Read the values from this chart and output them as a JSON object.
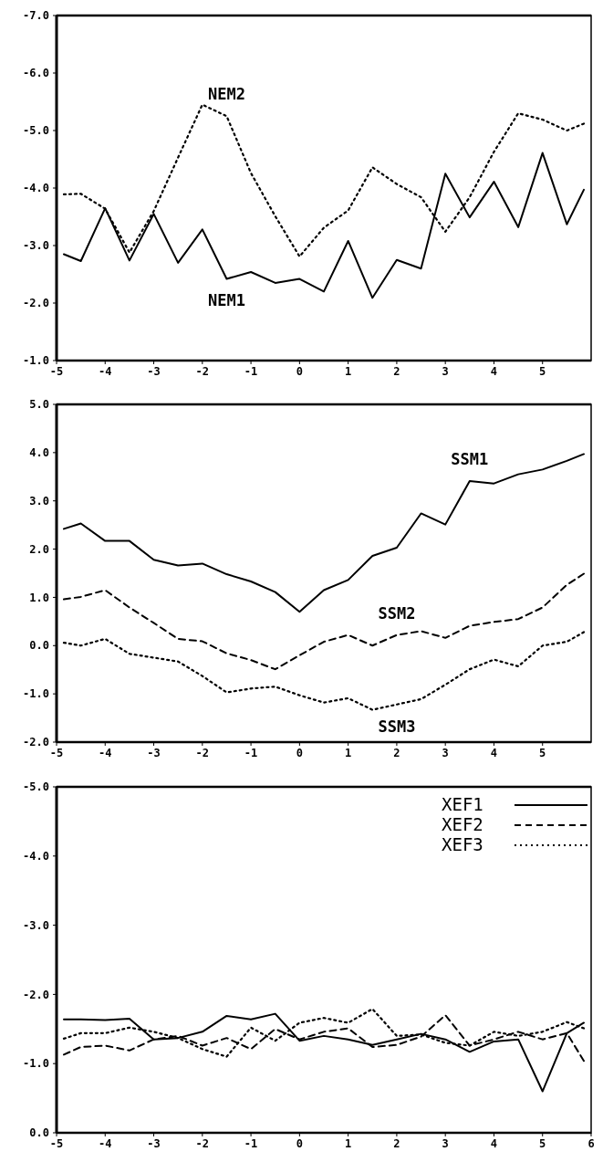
{
  "chart_data": [
    {
      "type": "line",
      "x": [
        -4.85,
        -4.5,
        -4,
        -3.5,
        -3,
        -2.5,
        -2,
        -1.5,
        -1,
        -0.5,
        0,
        0.5,
        1,
        1.5,
        2,
        2.5,
        3,
        3.5,
        4,
        4.5,
        5,
        5.5,
        5.85
      ],
      "series": [
        {
          "name": "NEM1",
          "color": "#000000",
          "line_style": "solid",
          "values": [
            -2.85,
            -2.73,
            -3.65,
            -2.74,
            -3.55,
            -2.7,
            -3.28,
            -2.42,
            -2.54,
            -2.35,
            -2.42,
            -2.2,
            -3.08,
            -2.09,
            -2.75,
            -2.6,
            -4.25,
            -3.49,
            -4.11,
            -3.32,
            -4.61,
            -3.37,
            -3.97
          ]
        },
        {
          "name": "NEM2",
          "color": "#000000",
          "line_style": "dotted",
          "values": [
            -3.89,
            -3.9,
            -3.64,
            -2.88,
            -3.6,
            -4.53,
            -5.45,
            -5.25,
            -4.26,
            -3.51,
            -2.81,
            -3.31,
            -3.61,
            -4.36,
            -4.07,
            -3.84,
            -3.24,
            -3.84,
            -4.63,
            -5.3,
            -5.19,
            -5.0,
            -5.12
          ]
        }
      ],
      "xlim": [
        -5,
        6
      ],
      "xticks": [
        -5,
        -4,
        -3,
        -2,
        -1,
        0,
        1,
        2,
        3,
        4,
        5
      ],
      "ylim": [
        -1,
        -7
      ],
      "yticks": [
        {
          "value": -7,
          "label": "-7.0"
        },
        {
          "value": -6,
          "label": "-6.0"
        },
        {
          "value": -5,
          "label": "-5.0"
        },
        {
          "value": -4,
          "label": "-4.0"
        },
        {
          "value": -3,
          "label": "-3.0"
        },
        {
          "value": -2,
          "label": "-2.0"
        },
        {
          "value": -1,
          "label": "-1.0"
        }
      ]
    },
    {
      "type": "line",
      "x": [
        -4.85,
        -4.5,
        -4,
        -3.5,
        -3,
        -2.5,
        -2,
        -1.5,
        -1,
        -0.5,
        0,
        0.5,
        1,
        1.5,
        2,
        2.5,
        3,
        3.5,
        4,
        4.5,
        5,
        5.5,
        5.85
      ],
      "series": [
        {
          "name": "SSM1",
          "color": "#000000",
          "line_style": "solid",
          "values": [
            2.42,
            2.53,
            2.17,
            2.17,
            1.78,
            1.66,
            1.7,
            1.48,
            1.33,
            1.11,
            0.7,
            1.15,
            1.36,
            1.86,
            2.03,
            2.74,
            2.51,
            3.41,
            3.36,
            3.55,
            3.65,
            3.83,
            3.97
          ]
        },
        {
          "name": "SSM2",
          "color": "#000000",
          "line_style": "dashed",
          "values": [
            0.96,
            1.01,
            1.15,
            0.79,
            0.47,
            0.14,
            0.09,
            -0.16,
            -0.3,
            -0.49,
            -0.2,
            0.08,
            0.22,
            0.0,
            0.22,
            0.3,
            0.16,
            0.41,
            0.49,
            0.55,
            0.79,
            1.26,
            1.49
          ]
        },
        {
          "name": "SSM3",
          "color": "#000000",
          "line_style": "dotted",
          "values": [
            0.06,
            0.0,
            0.14,
            -0.17,
            -0.25,
            -0.33,
            -0.63,
            -0.97,
            -0.89,
            -0.85,
            -1.03,
            -1.18,
            -1.09,
            -1.33,
            -1.22,
            -1.11,
            -0.81,
            -0.49,
            -0.29,
            -0.43,
            0.0,
            0.08,
            0.28
          ]
        }
      ],
      "xlim": [
        -5,
        6
      ],
      "xticks": [
        -5,
        -4,
        -3,
        -2,
        -1,
        0,
        1,
        2,
        3,
        4,
        5
      ],
      "ylim": [
        -2,
        5
      ],
      "yticks": [
        {
          "value": -2,
          "label": "-2.0"
        },
        {
          "value": -1,
          "label": "-1.0"
        },
        {
          "value": 0,
          "label": "0.0"
        },
        {
          "value": 1,
          "label": "1.0"
        },
        {
          "value": 2,
          "label": "2.0"
        },
        {
          "value": 3,
          "label": "3.0"
        },
        {
          "value": 4,
          "label": "4.0"
        },
        {
          "value": 5,
          "label": "5.0"
        }
      ]
    },
    {
      "type": "line",
      "x": [
        -4.85,
        -4.5,
        -4,
        -3.5,
        -3,
        -2.5,
        -2,
        -1.5,
        -1,
        -0.5,
        0,
        0.5,
        1,
        1.5,
        2,
        2.5,
        3,
        3.5,
        4,
        4.5,
        5,
        5.5,
        5.85
      ],
      "series": [
        {
          "name": "XEF1",
          "color": "#000000",
          "line_style": "solid",
          "values": [
            -1.64,
            -1.64,
            -1.63,
            -1.65,
            -1.35,
            -1.37,
            -1.46,
            -1.69,
            -1.64,
            -1.72,
            -1.33,
            -1.4,
            -1.35,
            -1.27,
            -1.35,
            -1.43,
            -1.35,
            -1.17,
            -1.32,
            -1.35,
            -0.6,
            -1.44,
            -1.59
          ]
        },
        {
          "name": "XEF2",
          "color": "#000000",
          "line_style": "dashed",
          "values": [
            -1.13,
            -1.24,
            -1.26,
            -1.19,
            -1.35,
            -1.4,
            -1.26,
            -1.37,
            -1.21,
            -1.5,
            -1.35,
            -1.46,
            -1.51,
            -1.24,
            -1.27,
            -1.39,
            -1.7,
            -1.26,
            -1.35,
            -1.46,
            -1.35,
            -1.44,
            -1.04
          ]
        },
        {
          "name": "XEF3",
          "color": "#000000",
          "line_style": "dotted",
          "values": [
            -1.36,
            -1.44,
            -1.44,
            -1.52,
            -1.46,
            -1.37,
            -1.21,
            -1.1,
            -1.52,
            -1.33,
            -1.59,
            -1.66,
            -1.59,
            -1.79,
            -1.4,
            -1.42,
            -1.3,
            -1.26,
            -1.46,
            -1.4,
            -1.46,
            -1.6,
            -1.51
          ]
        }
      ],
      "legend": "top right",
      "xlim": [
        -5,
        6
      ],
      "xticks": [
        -5,
        -4,
        -3,
        -2,
        -1,
        0,
        1,
        2,
        3,
        4,
        5,
        6
      ],
      "ylim": [
        0,
        -5
      ],
      "yticks": [
        {
          "value": -5,
          "label": "-5.0"
        },
        {
          "value": -4,
          "label": "-4.0"
        },
        {
          "value": -3,
          "label": "-3.0"
        },
        {
          "value": -2,
          "label": "-2.0"
        },
        {
          "value": -1,
          "label": "-1.0"
        },
        {
          "value": 0,
          "label": "0.0"
        }
      ]
    }
  ]
}
